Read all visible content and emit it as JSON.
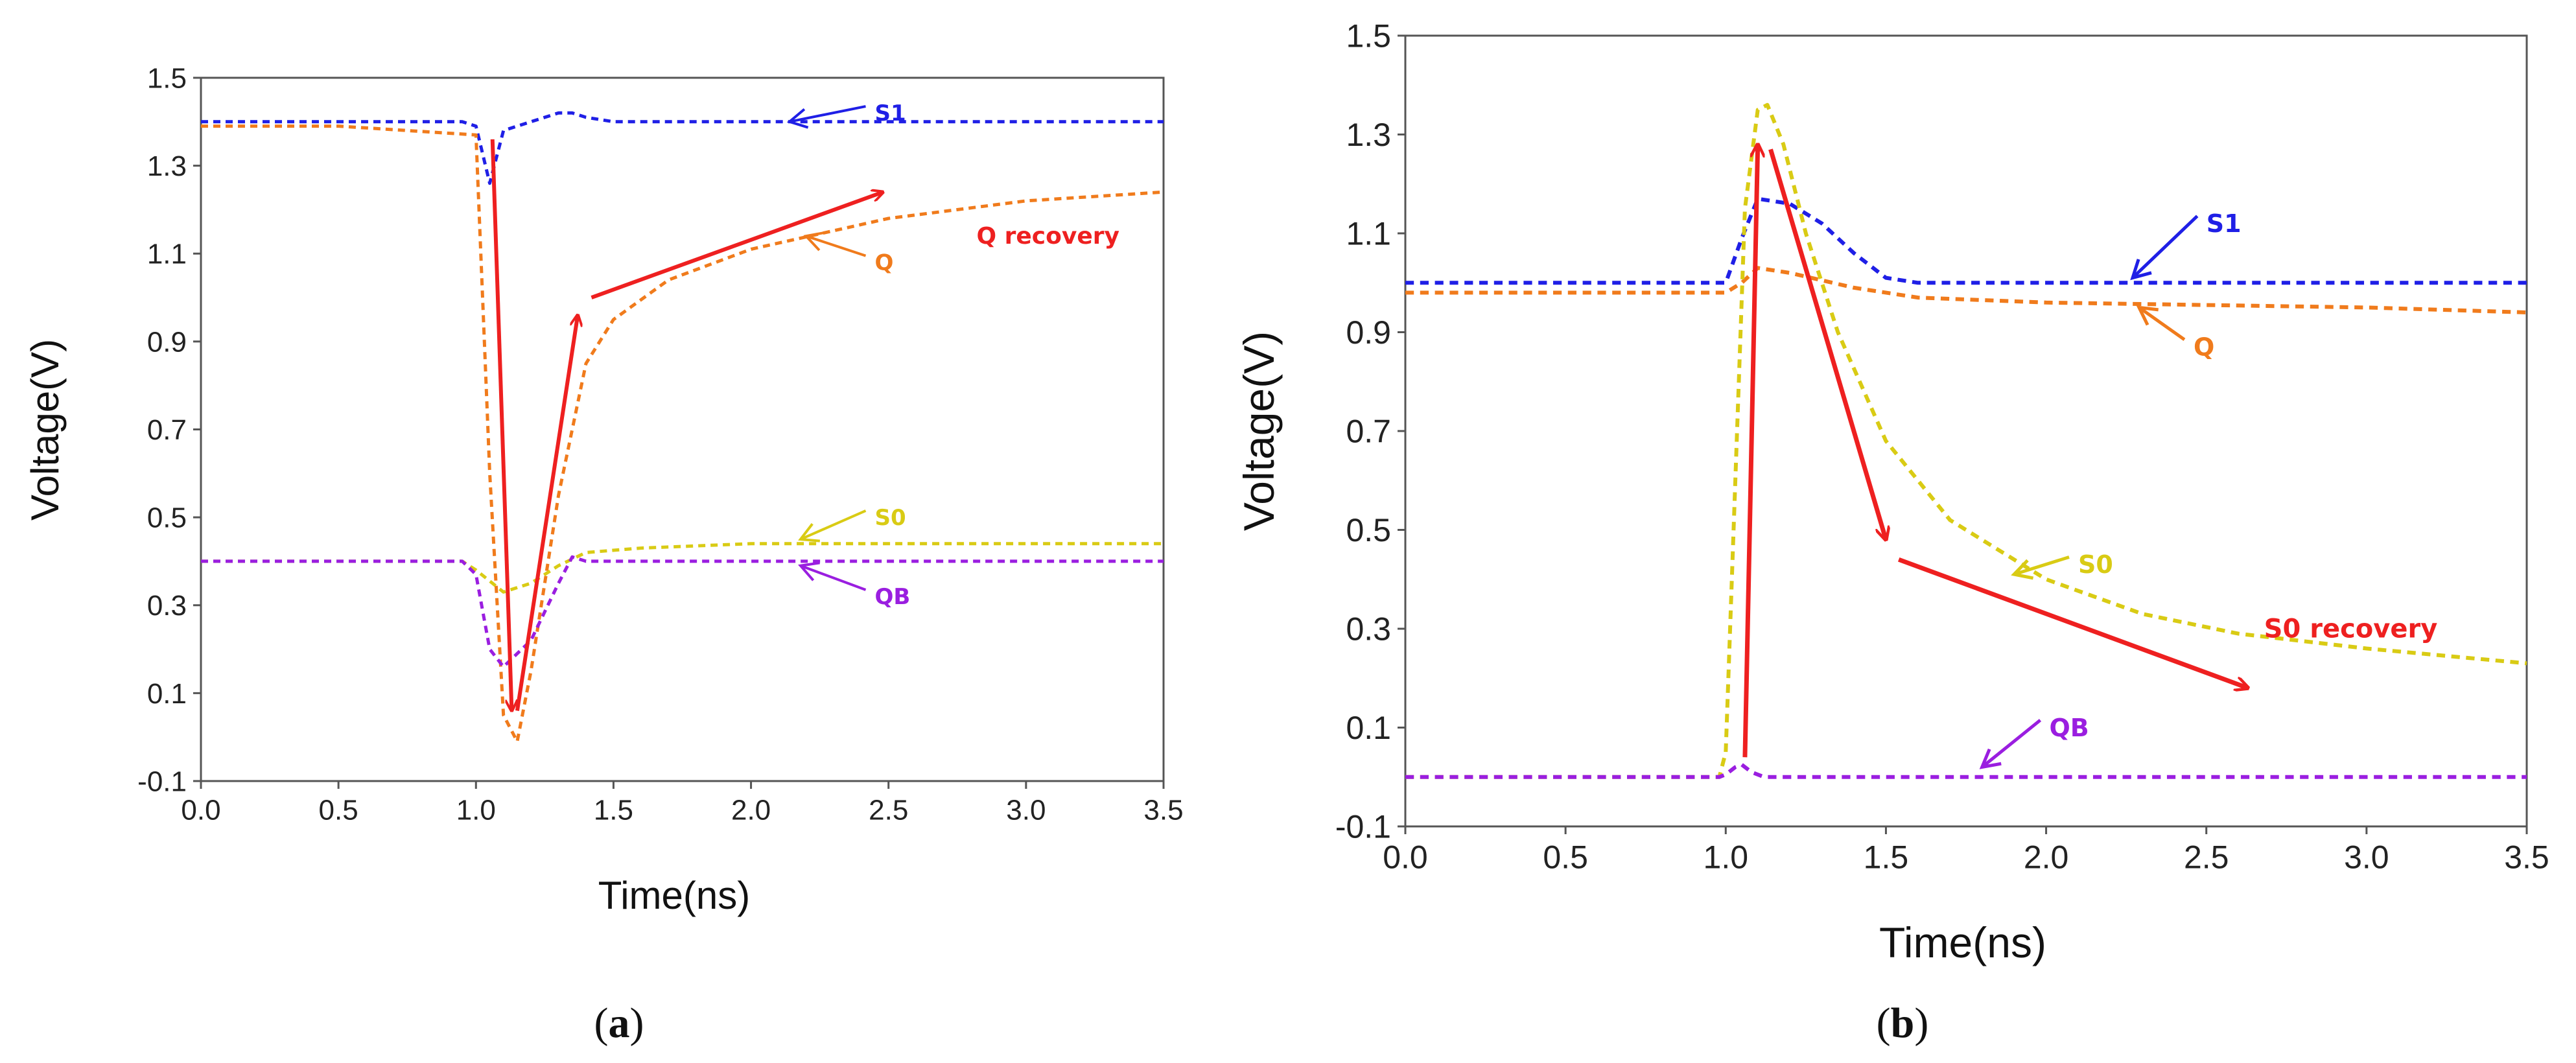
{
  "colors": {
    "S1": "#1f1fe6",
    "Q": "#f07b1c",
    "S0": "#d9cb14",
    "QB": "#9a1ee0",
    "arrow": "#ee2020",
    "axis": "#555555"
  },
  "chart_data": [
    {
      "id": "a",
      "type": "line",
      "panel_label": "a",
      "xlabel": "Time(ns)",
      "ylabel": "Voltage(V)",
      "xlim": [
        0.0,
        3.5
      ],
      "ylim": [
        -0.1,
        1.5
      ],
      "xticks": [
        "0.0",
        "0.5",
        "1.0",
        "1.5",
        "2.0",
        "2.5",
        "3.0",
        "3.5"
      ],
      "yticks": [
        "-0.1",
        "0.1",
        "0.3",
        "0.5",
        "0.7",
        "0.9",
        "1.1",
        "1.3",
        "1.5"
      ],
      "grid": false,
      "series": [
        {
          "name": "S1",
          "style": "dashed",
          "x": [
            0.0,
            0.95,
            1.0,
            1.05,
            1.1,
            1.2,
            1.3,
            1.35,
            1.4,
            1.5,
            2.0,
            3.5
          ],
          "y": [
            1.4,
            1.4,
            1.39,
            1.26,
            1.38,
            1.4,
            1.42,
            1.42,
            1.41,
            1.4,
            1.4,
            1.4
          ]
        },
        {
          "name": "Q",
          "style": "dashed",
          "x": [
            0.0,
            0.5,
            1.0,
            1.05,
            1.1,
            1.15,
            1.2,
            1.3,
            1.4,
            1.5,
            1.7,
            2.0,
            2.5,
            3.0,
            3.5
          ],
          "y": [
            1.39,
            1.39,
            1.37,
            0.6,
            0.05,
            -0.01,
            0.15,
            0.55,
            0.85,
            0.95,
            1.04,
            1.11,
            1.18,
            1.22,
            1.24
          ]
        },
        {
          "name": "S0",
          "style": "dashed",
          "x": [
            0.0,
            0.95,
            1.0,
            1.1,
            1.2,
            1.3,
            1.4,
            1.6,
            2.0,
            2.5,
            3.0,
            3.5
          ],
          "y": [
            0.4,
            0.4,
            0.38,
            0.33,
            0.35,
            0.39,
            0.42,
            0.43,
            0.44,
            0.44,
            0.44,
            0.44
          ]
        },
        {
          "name": "QB",
          "style": "dashed",
          "x": [
            0.0,
            0.95,
            1.0,
            1.05,
            1.1,
            1.2,
            1.3,
            1.35,
            1.4,
            2.0,
            3.5
          ],
          "y": [
            0.4,
            0.4,
            0.37,
            0.2,
            0.16,
            0.22,
            0.35,
            0.41,
            0.4,
            0.4,
            0.4
          ]
        }
      ],
      "labels": [
        {
          "text": "S1",
          "color_key": "S1",
          "x": 2.45,
          "y": 1.42,
          "ax": 2.14,
          "ay": 1.4
        },
        {
          "text": "Q",
          "color_key": "Q",
          "x": 2.45,
          "y": 1.08,
          "ax": 2.2,
          "ay": 1.14
        },
        {
          "text": "S0",
          "color_key": "S0",
          "x": 2.45,
          "y": 0.5,
          "ax": 2.18,
          "ay": 0.45
        },
        {
          "text": "QB",
          "color_key": "QB",
          "x": 2.45,
          "y": 0.32,
          "ax": 2.18,
          "ay": 0.39
        },
        {
          "text": "Q recovery",
          "color_key": "arrow",
          "x": 2.82,
          "y": 1.14,
          "ax": null,
          "ay": null
        }
      ],
      "arrows": [
        {
          "from": [
            1.06,
            1.36
          ],
          "to": [
            1.13,
            0.06
          ]
        },
        {
          "from": [
            1.15,
            0.06
          ],
          "to": [
            1.37,
            0.96
          ]
        },
        {
          "from": [
            1.42,
            1.0
          ],
          "to": [
            2.48,
            1.24
          ]
        }
      ]
    },
    {
      "id": "b",
      "type": "line",
      "panel_label": "b",
      "xlabel": "Time(ns)",
      "ylabel": "Voltage(V)",
      "xlim": [
        0.0,
        3.5
      ],
      "ylim": [
        -0.1,
        1.5
      ],
      "xticks": [
        "0.0",
        "0.5",
        "1.0",
        "1.5",
        "2.0",
        "2.5",
        "3.0",
        "3.5"
      ],
      "yticks": [
        "-0.1",
        "0.1",
        "0.3",
        "0.5",
        "0.7",
        "0.9",
        "1.1",
        "1.3",
        "1.5"
      ],
      "grid": false,
      "series": [
        {
          "name": "S1",
          "style": "dashed",
          "x": [
            0.0,
            0.95,
            1.0,
            1.05,
            1.1,
            1.2,
            1.3,
            1.4,
            1.5,
            1.6,
            2.0,
            3.5
          ],
          "y": [
            1.0,
            1.0,
            1.0,
            1.09,
            1.17,
            1.16,
            1.12,
            1.06,
            1.01,
            1.0,
            1.0,
            1.0
          ]
        },
        {
          "name": "Q",
          "style": "dashed",
          "x": [
            0.0,
            0.95,
            1.0,
            1.05,
            1.1,
            1.2,
            1.4,
            1.6,
            2.0,
            2.5,
            3.0,
            3.5
          ],
          "y": [
            0.98,
            0.98,
            0.98,
            1.0,
            1.03,
            1.02,
            0.99,
            0.97,
            0.96,
            0.955,
            0.95,
            0.94
          ]
        },
        {
          "name": "S0",
          "style": "dashed",
          "x": [
            0.0,
            0.98,
            1.0,
            1.03,
            1.06,
            1.1,
            1.13,
            1.18,
            1.25,
            1.35,
            1.5,
            1.7,
            2.0,
            2.3,
            2.6,
            3.0,
            3.5
          ],
          "y": [
            0.0,
            0.0,
            0.05,
            0.6,
            1.15,
            1.35,
            1.36,
            1.28,
            1.1,
            0.9,
            0.68,
            0.52,
            0.4,
            0.33,
            0.29,
            0.26,
            0.23
          ]
        },
        {
          "name": "QB",
          "style": "dashed",
          "x": [
            0.0,
            0.98,
            1.0,
            1.03,
            1.05,
            1.08,
            1.12,
            1.2,
            3.5
          ],
          "y": [
            0.0,
            0.0,
            0.005,
            0.02,
            0.025,
            0.01,
            0.0,
            0.0,
            0.0
          ]
        }
      ],
      "labels": [
        {
          "text": "S1",
          "color_key": "S1",
          "x": 2.5,
          "y": 1.12,
          "ax": 2.27,
          "ay": 1.01
        },
        {
          "text": "Q",
          "color_key": "Q",
          "x": 2.46,
          "y": 0.87,
          "ax": 2.29,
          "ay": 0.95
        },
        {
          "text": "S0",
          "color_key": "S0",
          "x": 2.1,
          "y": 0.43,
          "ax": 1.9,
          "ay": 0.41
        },
        {
          "text": "QB",
          "color_key": "QB",
          "x": 2.01,
          "y": 0.1,
          "ax": 1.8,
          "ay": 0.02
        },
        {
          "text": "S0 recovery",
          "color_key": "arrow",
          "x": 2.68,
          "y": 0.3,
          "ax": null,
          "ay": null
        }
      ],
      "arrows": [
        {
          "from": [
            1.06,
            0.04
          ],
          "to": [
            1.1,
            1.28
          ]
        },
        {
          "from": [
            1.14,
            1.27
          ],
          "to": [
            1.5,
            0.48
          ]
        },
        {
          "from": [
            1.54,
            0.44
          ],
          "to": [
            2.63,
            0.18
          ]
        }
      ]
    }
  ]
}
